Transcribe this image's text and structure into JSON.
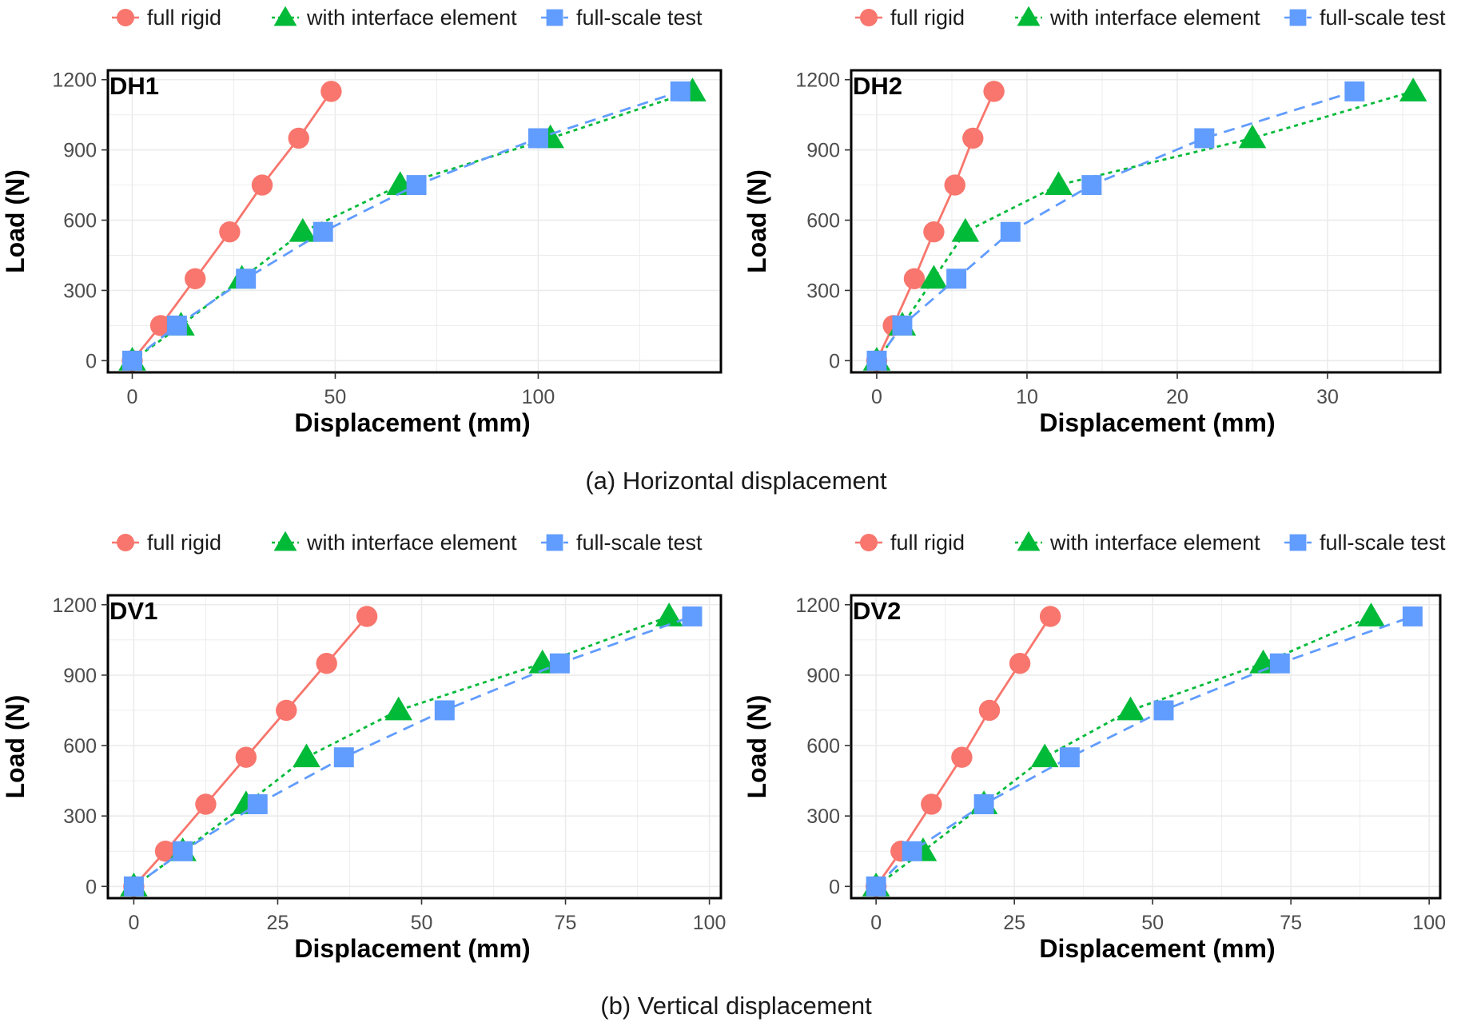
{
  "colors": {
    "full_rigid": "#f8766d",
    "with_interface_element": "#00ba38",
    "full_scale_test": "#619cff",
    "grid": "#ebebeb",
    "frame": "#000000"
  },
  "captions": {
    "top": "(a) Horizontal displacement",
    "bottom": "(b) Vertical displacement"
  },
  "chart_data": [
    {
      "type": "line",
      "panel_label": "DH1",
      "xlabel": "Displacement (mm)",
      "ylabel": "Load (N)",
      "xlim": [
        -6,
        145
      ],
      "ylim": [
        -50,
        1240
      ],
      "xticks": [
        0,
        50,
        100
      ],
      "yticks": [
        0,
        300,
        600,
        900,
        1200
      ],
      "grid": true,
      "legend": "top",
      "series": [
        {
          "name": "full rigid",
          "key": "full_rigid",
          "marker": "circle",
          "line": "solid",
          "x": [
            0,
            7,
            15.5,
            24,
            32,
            41,
            49
          ],
          "y": [
            0,
            150,
            350,
            550,
            750,
            950,
            1150
          ]
        },
        {
          "name": "with interface element",
          "key": "with_interface_element",
          "marker": "triangle",
          "line": "dotted",
          "x": [
            0,
            12,
            27,
            42,
            66,
            103,
            138
          ],
          "y": [
            0,
            150,
            350,
            550,
            750,
            950,
            1150
          ]
        },
        {
          "name": "full-scale test",
          "key": "full_scale_test",
          "marker": "square",
          "line": "dashed",
          "x": [
            0,
            11,
            28,
            47,
            70,
            100,
            135
          ],
          "y": [
            0,
            150,
            350,
            550,
            750,
            950,
            1150
          ]
        }
      ]
    },
    {
      "type": "line",
      "panel_label": "DH2",
      "xlabel": "Displacement (mm)",
      "ylabel": "Load (N)",
      "xlim": [
        -1.7,
        37.5
      ],
      "ylim": [
        -50,
        1240
      ],
      "xticks": [
        0,
        10,
        20,
        30
      ],
      "yticks": [
        0,
        300,
        600,
        900,
        1200
      ],
      "grid": true,
      "legend": "top",
      "series": [
        {
          "name": "full rigid",
          "key": "full_rigid",
          "marker": "circle",
          "line": "solid",
          "x": [
            0,
            1.1,
            2.5,
            3.8,
            5.2,
            6.4,
            7.8
          ],
          "y": [
            0,
            150,
            350,
            550,
            750,
            950,
            1150
          ]
        },
        {
          "name": "with interface element",
          "key": "with_interface_element",
          "marker": "triangle",
          "line": "dotted",
          "x": [
            0,
            1.7,
            3.8,
            5.9,
            12.1,
            25,
            35.7
          ],
          "y": [
            0,
            150,
            350,
            550,
            750,
            950,
            1150
          ]
        },
        {
          "name": "full-scale test",
          "key": "full_scale_test",
          "marker": "square",
          "line": "dashed",
          "x": [
            0,
            1.7,
            5.3,
            8.9,
            14.3,
            21.8,
            31.8
          ],
          "y": [
            0,
            150,
            350,
            550,
            750,
            950,
            1150
          ]
        }
      ]
    },
    {
      "type": "line",
      "panel_label": "DV1",
      "xlabel": "Displacement (mm)",
      "ylabel": "Load (N)",
      "xlim": [
        -4.5,
        102
      ],
      "ylim": [
        -50,
        1240
      ],
      "xticks": [
        0,
        25,
        50,
        75,
        100
      ],
      "yticks": [
        0,
        300,
        600,
        900,
        1200
      ],
      "grid": true,
      "legend": "top",
      "series": [
        {
          "name": "full rigid",
          "key": "full_rigid",
          "marker": "circle",
          "line": "solid",
          "x": [
            0,
            5.5,
            12.5,
            19.5,
            26.5,
            33.5,
            40.5
          ],
          "y": [
            0,
            150,
            350,
            550,
            750,
            950,
            1150
          ]
        },
        {
          "name": "with interface element",
          "key": "with_interface_element",
          "marker": "triangle",
          "line": "dotted",
          "x": [
            0,
            8.5,
            19.5,
            30,
            46,
            71,
            93
          ],
          "y": [
            0,
            150,
            350,
            550,
            750,
            950,
            1150
          ]
        },
        {
          "name": "full-scale test",
          "key": "full_scale_test",
          "marker": "square",
          "line": "dashed",
          "x": [
            0,
            8.5,
            21.5,
            36.5,
            54,
            74,
            97
          ],
          "y": [
            0,
            150,
            350,
            550,
            750,
            950,
            1150
          ]
        }
      ]
    },
    {
      "type": "line",
      "panel_label": "DV2",
      "xlabel": "Displacement (mm)",
      "ylabel": "Load (N)",
      "xlim": [
        -4.5,
        102
      ],
      "ylim": [
        -50,
        1240
      ],
      "xticks": [
        0,
        25,
        50,
        75,
        100
      ],
      "yticks": [
        0,
        300,
        600,
        900,
        1200
      ],
      "grid": true,
      "legend": "top",
      "series": [
        {
          "name": "full rigid",
          "key": "full_rigid",
          "marker": "circle",
          "line": "solid",
          "x": [
            0,
            4.5,
            10,
            15.5,
            20.5,
            26,
            31.5
          ],
          "y": [
            0,
            150,
            350,
            550,
            750,
            950,
            1150
          ]
        },
        {
          "name": "with interface element",
          "key": "with_interface_element",
          "marker": "triangle",
          "line": "dotted",
          "x": [
            0,
            8.5,
            19.5,
            30.5,
            46,
            70,
            89.5
          ],
          "y": [
            0,
            150,
            350,
            550,
            750,
            950,
            1150
          ]
        },
        {
          "name": "full-scale test",
          "key": "full_scale_test",
          "marker": "square",
          "line": "dashed",
          "x": [
            0,
            6.5,
            19.5,
            35,
            52,
            73,
            97
          ],
          "y": [
            0,
            150,
            350,
            550,
            750,
            950,
            1150
          ]
        }
      ]
    }
  ]
}
